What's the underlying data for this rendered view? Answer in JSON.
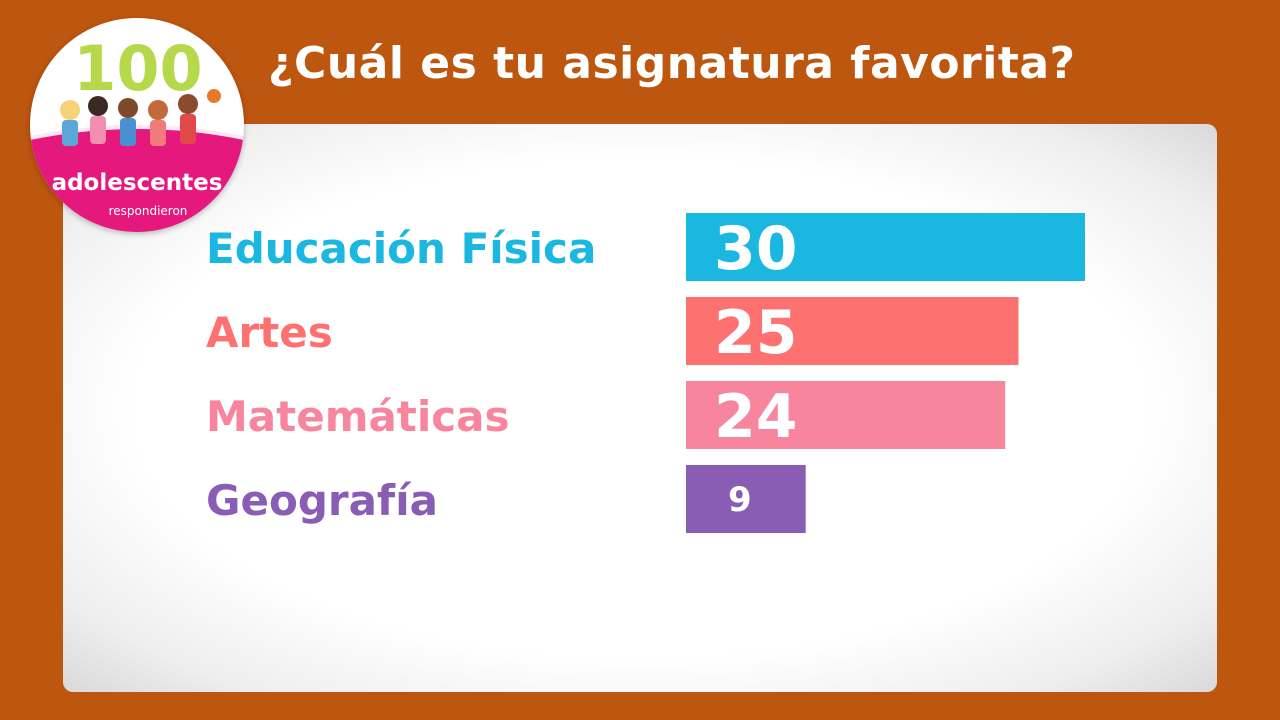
{
  "header": {
    "title": "¿Cuál es tu asignatura favorita?"
  },
  "logo": {
    "number": "100",
    "word": "adolescentes",
    "sub": "respondieron"
  },
  "colors": {
    "background": "#bd560f",
    "panel": "#ffffff",
    "title": "#ffffff"
  },
  "chart_data": {
    "type": "bar",
    "orientation": "horizontal",
    "title": "¿Cuál es tu asignatura favorita?",
    "xlabel": "",
    "ylabel": "",
    "categories": [
      "Educación Física",
      "Artes",
      "Matemáticas",
      "Geografía"
    ],
    "values": [
      30,
      25,
      24,
      9
    ],
    "colors": [
      "#1ab7e0",
      "#fd7170",
      "#f7859e",
      "#8a5db5"
    ],
    "xlim": [
      0,
      30
    ],
    "grid": false,
    "legend": "none",
    "data_labels": true
  }
}
